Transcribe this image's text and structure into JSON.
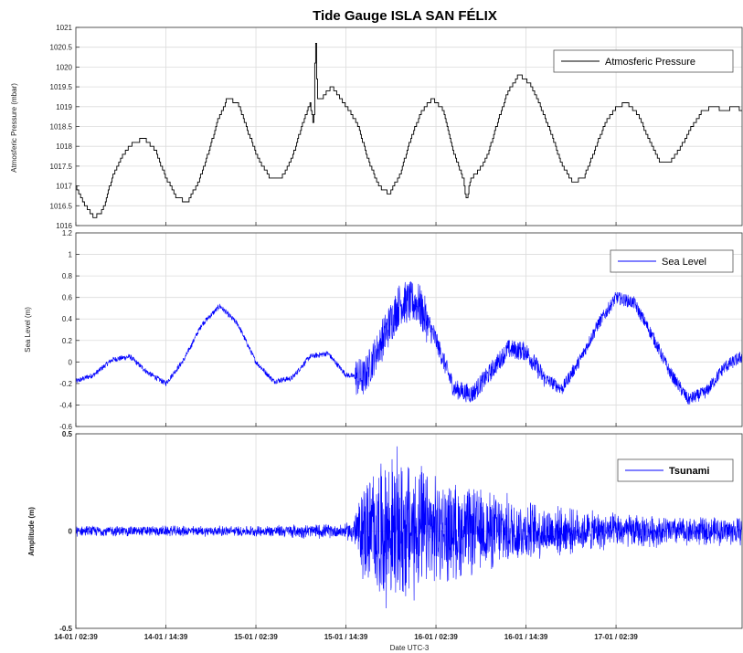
{
  "chart_data": [
    {
      "type": "line",
      "title": "Tide Gauge ISLA SAN FÉLIX",
      "xlabel": "",
      "ylabel": "Atmosferic Pressure (mbar)",
      "ylim": [
        1016,
        1021
      ],
      "yticks": [
        "1016",
        "1016.5",
        "1017",
        "1017.5",
        "1018",
        "1018.5",
        "1019",
        "1019.5",
        "1020",
        "1020.5",
        "1021"
      ],
      "xlim": [
        0,
        3.7
      ],
      "xtick_values": [
        0,
        0.5,
        1,
        1.5,
        2,
        2.5,
        3
      ],
      "grid": true,
      "legend_position": "top-right",
      "series": [
        {
          "name": "Atmosferic Pressure",
          "color": "#000000",
          "x": [
            0,
            0.05,
            0.1,
            0.15,
            0.2,
            0.26,
            0.32,
            0.38,
            0.44,
            0.5,
            0.56,
            0.62,
            0.68,
            0.74,
            0.79,
            0.84,
            0.9,
            0.96,
            1.02,
            1.08,
            1.14,
            1.2,
            1.26,
            1.3,
            1.32,
            1.33,
            1.34,
            1.36,
            1.42,
            1.5,
            1.56,
            1.62,
            1.68,
            1.74,
            1.8,
            1.86,
            1.92,
            1.98,
            2.04,
            2.1,
            2.15,
            2.17,
            2.19,
            2.22,
            2.28,
            2.34,
            2.4,
            2.46,
            2.52,
            2.58,
            2.64,
            2.7,
            2.76,
            2.82,
            2.88,
            2.94,
            3.0,
            3.06,
            3.12,
            3.18,
            3.24,
            3.3,
            3.36,
            3.42,
            3.48,
            3.54,
            3.6,
            3.66,
            3.7
          ],
          "y": [
            1017.0,
            1016.5,
            1016.2,
            1016.4,
            1017.2,
            1017.8,
            1018.1,
            1018.2,
            1017.9,
            1017.2,
            1016.7,
            1016.6,
            1017.1,
            1017.9,
            1018.7,
            1019.2,
            1019.1,
            1018.3,
            1017.6,
            1017.2,
            1017.2,
            1017.7,
            1018.6,
            1019.1,
            1018.5,
            1020.9,
            1019.2,
            1019.2,
            1019.5,
            1019.0,
            1018.6,
            1017.7,
            1017.0,
            1016.8,
            1017.3,
            1018.2,
            1018.9,
            1019.2,
            1018.9,
            1017.8,
            1017.2,
            1016.6,
            1017.2,
            1017.3,
            1017.7,
            1018.6,
            1019.4,
            1019.8,
            1019.6,
            1019.0,
            1018.3,
            1017.5,
            1017.1,
            1017.2,
            1017.9,
            1018.6,
            1019.0,
            1019.1,
            1018.8,
            1018.2,
            1017.6,
            1017.6,
            1018.0,
            1018.5,
            1018.9,
            1019.0,
            1018.9,
            1019.0,
            1018.9
          ]
        }
      ]
    },
    {
      "type": "line",
      "ylabel": "Sea Level (m)",
      "ylim": [
        -0.6,
        1.2
      ],
      "yticks": [
        "-0.6",
        "-0.4",
        "-0.2",
        "0",
        "0.2",
        "0.4",
        "0.6",
        "0.8",
        "1",
        "1.2"
      ],
      "xlim": [
        0,
        3.7
      ],
      "grid": true,
      "legend_position": "top-right",
      "series": [
        {
          "name": "Sea Level",
          "color": "#0000ff",
          "x": [
            0,
            0.1,
            0.2,
            0.3,
            0.4,
            0.5,
            0.6,
            0.7,
            0.8,
            0.9,
            1.0,
            1.1,
            1.2,
            1.3,
            1.4,
            1.5,
            1.6,
            1.7,
            1.8,
            1.9,
            2.0,
            2.1,
            2.2,
            2.3,
            2.4,
            2.5,
            2.6,
            2.7,
            2.8,
            2.9,
            3.0,
            3.1,
            3.2,
            3.3,
            3.4,
            3.5,
            3.6,
            3.7
          ],
          "y": [
            -0.18,
            -0.12,
            0.02,
            0.05,
            -0.1,
            -0.2,
            0.02,
            0.35,
            0.52,
            0.35,
            0.0,
            -0.18,
            -0.15,
            0.05,
            0.08,
            -0.12,
            -0.15,
            0.2,
            0.55,
            0.55,
            0.2,
            -0.25,
            -0.3,
            -0.1,
            0.12,
            0.1,
            -0.15,
            -0.25,
            0.02,
            0.35,
            0.6,
            0.55,
            0.25,
            -0.1,
            -0.35,
            -0.28,
            -0.05,
            0.05
          ]
        }
      ]
    },
    {
      "type": "line",
      "ylabel": "Amplitude (m)",
      "xlabel": "Date UTC-3",
      "ylim": [
        -0.5,
        0.5
      ],
      "yticks": [
        "-0.5",
        "0",
        "0.5"
      ],
      "xlim": [
        0,
        3.7
      ],
      "xticks": [
        "14-01 / 02:39",
        "14-01 / 14:39",
        "15-01 / 02:39",
        "15-01 / 14:39",
        "16-01 / 02:39",
        "16-01 / 14:39",
        "17-01 / 02:39"
      ],
      "grid": true,
      "legend_position": "top-right",
      "series": [
        {
          "name": "Tsunami",
          "color": "#0000ff",
          "x": [
            0,
            0.25,
            0.5,
            0.75,
            1.0,
            1.25,
            1.5,
            1.55,
            1.6,
            1.7,
            1.8,
            1.9,
            2.0,
            2.2,
            2.4,
            2.6,
            2.8,
            3.0,
            3.2,
            3.4,
            3.6,
            3.7
          ],
          "envelope": [
            0.03,
            0.03,
            0.03,
            0.03,
            0.03,
            0.04,
            0.04,
            0.1,
            0.3,
            0.4,
            0.45,
            0.38,
            0.3,
            0.25,
            0.2,
            0.15,
            0.12,
            0.1,
            0.09,
            0.08,
            0.08,
            0.08
          ]
        }
      ]
    }
  ]
}
